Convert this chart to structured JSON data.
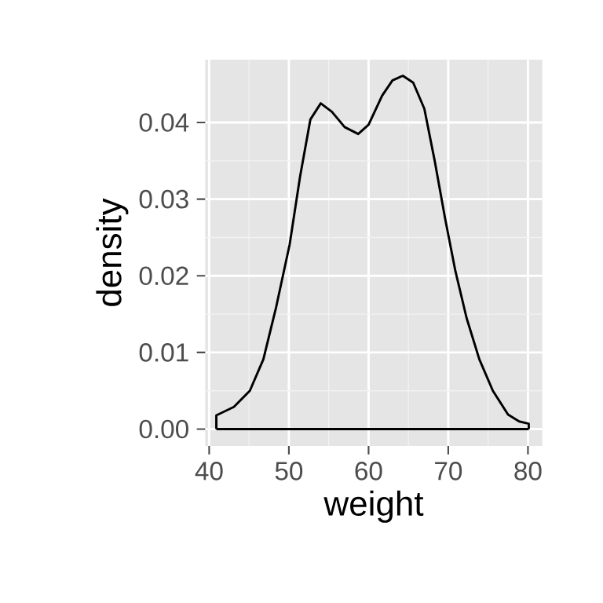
{
  "chart_data": {
    "type": "line",
    "xlabel": "weight",
    "ylabel": "density",
    "xlim": [
      39.5,
      81.8
    ],
    "ylim": [
      -0.0022,
      0.0482
    ],
    "xticks": [
      40,
      50,
      60,
      70,
      80
    ],
    "yticks": [
      {
        "value": 0,
        "label": "0.00"
      },
      {
        "value": 0.01,
        "label": "0.01"
      },
      {
        "value": 0.02,
        "label": "0.02"
      },
      {
        "value": 0.03,
        "label": "0.03"
      },
      {
        "value": 0.04,
        "label": "0.04"
      }
    ],
    "grid": true,
    "marker": "none",
    "line_style": "solid",
    "series": [
      {
        "color": "#000000",
        "x": [
          40.9,
          40.9,
          43.1,
          45.1,
          46.8,
          48.4,
          50.1,
          51.4,
          52.7,
          54.0,
          55.4,
          57.0,
          58.7,
          60.0,
          61.7,
          63.0,
          64.3,
          65.6,
          67.0,
          68.3,
          69.6,
          70.9,
          72.3,
          73.9,
          75.6,
          77.5,
          78.9,
          80.1,
          80.1
        ],
        "values": [
          0,
          0.0018,
          0.0029,
          0.005,
          0.0091,
          0.0159,
          0.0241,
          0.0329,
          0.0404,
          0.0425,
          0.0414,
          0.0394,
          0.0385,
          0.0397,
          0.0435,
          0.0455,
          0.0461,
          0.0452,
          0.0418,
          0.035,
          0.0275,
          0.0206,
          0.0145,
          0.0091,
          0.005,
          0.0019,
          0.001,
          0.0007,
          0
        ]
      },
      {
        "color": "#000000",
        "x": [
          40.9,
          80.1
        ],
        "values": [
          0,
          0
        ]
      }
    ]
  }
}
